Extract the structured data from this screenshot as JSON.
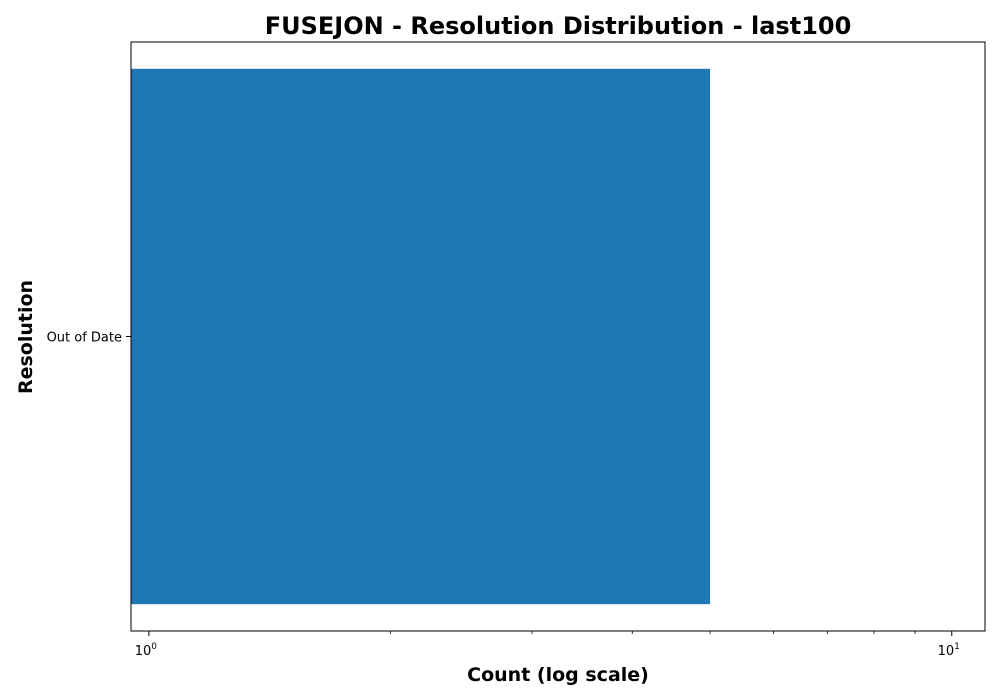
{
  "chart_data": {
    "type": "bar",
    "orientation": "horizontal",
    "title": "FUSEJON - Resolution Distribution - last100",
    "xlabel": "Count (log scale)",
    "ylabel": "Resolution",
    "x_scale": "log",
    "xlim": [
      0.95,
      11.0
    ],
    "categories": [
      "Out of Date"
    ],
    "values": [
      5
    ],
    "x_ticks": [
      {
        "base": "10",
        "exp": "0",
        "value": 1
      },
      {
        "base": "10",
        "exp": "1",
        "value": 10
      }
    ],
    "grid": false,
    "legend": false,
    "bar_color": "#1f77b4"
  }
}
